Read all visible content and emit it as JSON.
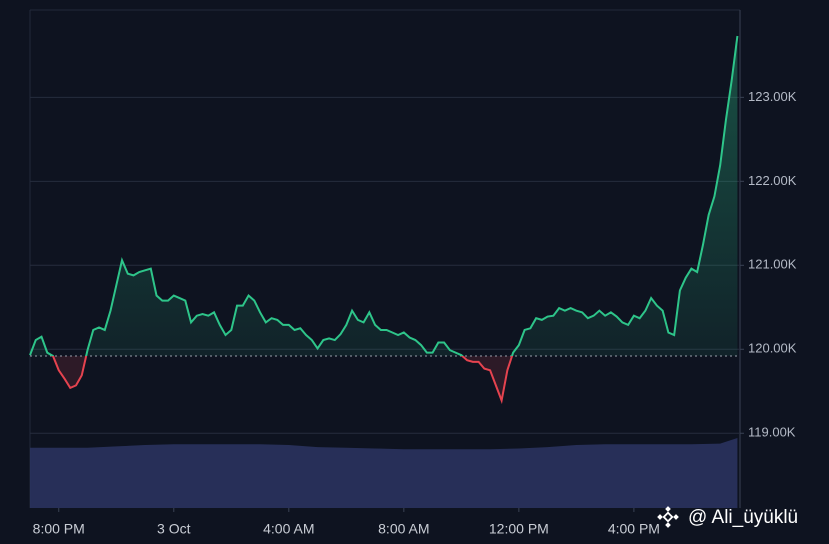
{
  "chart_data": {
    "type": "line",
    "x": [
      -1,
      -0.8,
      -0.6,
      -0.4,
      -0.2,
      0,
      0.2,
      0.4,
      0.6,
      0.8,
      1,
      1.2,
      1.4,
      1.6,
      1.8,
      2,
      2.2,
      2.4,
      2.6,
      2.8,
      3,
      3.2,
      3.4,
      3.6,
      3.8,
      4,
      4.2,
      4.4,
      4.6,
      4.8,
      5,
      5.2,
      5.4,
      5.6,
      5.8,
      6,
      6.2,
      6.4,
      6.6,
      6.8,
      7,
      7.2,
      7.4,
      7.6,
      7.8,
      8,
      8.2,
      8.4,
      8.6,
      8.8,
      9,
      9.2,
      9.4,
      9.6,
      9.8,
      10,
      10.2,
      10.4,
      10.6,
      10.8,
      11,
      11.2,
      11.4,
      11.6,
      11.8,
      12,
      12.2,
      12.4,
      12.6,
      12.8,
      13,
      13.2,
      13.4,
      13.6,
      13.8,
      14,
      14.2,
      14.4,
      14.6,
      14.8,
      15,
      15.2,
      15.4,
      15.6,
      15.8,
      16,
      16.2,
      16.4,
      16.6,
      16.8,
      17,
      17.2,
      17.4,
      17.6,
      17.8,
      18,
      18.2,
      18.4,
      18.6,
      18.8,
      19,
      19.2,
      19.4,
      19.6,
      19.8,
      20,
      20.2,
      20.4,
      20.6,
      20.8,
      21,
      21.2,
      21.4,
      21.6,
      21.8,
      22,
      22.2,
      22.4,
      22.6,
      22.8,
      23,
      23.2,
      23.4,
      23.6
    ],
    "values": [
      119.93,
      120.11,
      120.15,
      119.96,
      119.92,
      119.75,
      119.65,
      119.54,
      119.57,
      119.69,
      119.99,
      120.23,
      120.26,
      120.23,
      120.46,
      120.76,
      121.06,
      120.9,
      120.88,
      120.92,
      120.94,
      120.96,
      120.64,
      120.58,
      120.58,
      120.64,
      120.61,
      120.58,
      120.32,
      120.4,
      120.42,
      120.4,
      120.44,
      120.29,
      120.17,
      120.23,
      120.52,
      120.52,
      120.64,
      120.58,
      120.44,
      120.32,
      120.37,
      120.35,
      120.29,
      120.29,
      120.23,
      120.25,
      120.17,
      120.11,
      120.01,
      120.11,
      120.13,
      120.11,
      120.18,
      120.29,
      120.46,
      120.35,
      120.32,
      120.44,
      120.29,
      120.23,
      120.23,
      120.2,
      120.17,
      120.2,
      120.14,
      120.11,
      120.05,
      119.96,
      119.96,
      120.08,
      120.08,
      119.99,
      119.96,
      119.93,
      119.87,
      119.85,
      119.85,
      119.77,
      119.75,
      119.57,
      119.39,
      119.75,
      119.96,
      120.05,
      120.23,
      120.25,
      120.37,
      120.35,
      120.39,
      120.4,
      120.49,
      120.46,
      120.49,
      120.46,
      120.44,
      120.37,
      120.4,
      120.46,
      120.4,
      120.44,
      120.39,
      120.32,
      120.29,
      120.4,
      120.37,
      120.46,
      120.61,
      120.52,
      120.46,
      120.2,
      120.17,
      120.7,
      120.85,
      120.96,
      120.92,
      121.24,
      121.6,
      121.82,
      122.19,
      122.73,
      123.2,
      123.73
    ],
    "baseline": 119.92,
    "up_color": "#2ec58a",
    "down_color": "#e5434f",
    "volume": {
      "color": "#2b3563",
      "x": [
        -1,
        0,
        1,
        2,
        3,
        4,
        5,
        6,
        7,
        8,
        9,
        10,
        11,
        12,
        13,
        14,
        15,
        16,
        17,
        18,
        19,
        20,
        21,
        22,
        23,
        23.6
      ],
      "values": [
        86,
        86,
        86,
        88,
        90,
        91,
        91,
        91,
        91,
        90,
        87,
        86,
        85,
        84,
        84,
        84,
        84,
        85,
        87,
        90,
        91,
        91,
        91,
        91,
        92,
        100
      ]
    },
    "y2lim": [
      0,
      100
    ],
    "xlim": [
      -1,
      23.69
    ],
    "xticks": [
      {
        "value": 0,
        "label": "8:00 PM"
      },
      {
        "value": 4,
        "label": "3 Oct"
      },
      {
        "value": 8,
        "label": "4:00 AM"
      },
      {
        "value": 12,
        "label": "8:00 AM"
      },
      {
        "value": 16,
        "label": "12:00 PM"
      },
      {
        "value": 20,
        "label": "4:00 PM"
      }
    ],
    "ylim": [
      118.11,
      124.04
    ],
    "yticks": [
      {
        "value": 119,
        "label": "119.00K"
      },
      {
        "value": 120,
        "label": "120.00K"
      },
      {
        "value": 121,
        "label": "121.00K"
      },
      {
        "value": 122,
        "label": "122.00K"
      },
      {
        "value": 123,
        "label": "123.00K"
      }
    ],
    "grid": true,
    "watermark": "@ Ali_üyüklü"
  }
}
